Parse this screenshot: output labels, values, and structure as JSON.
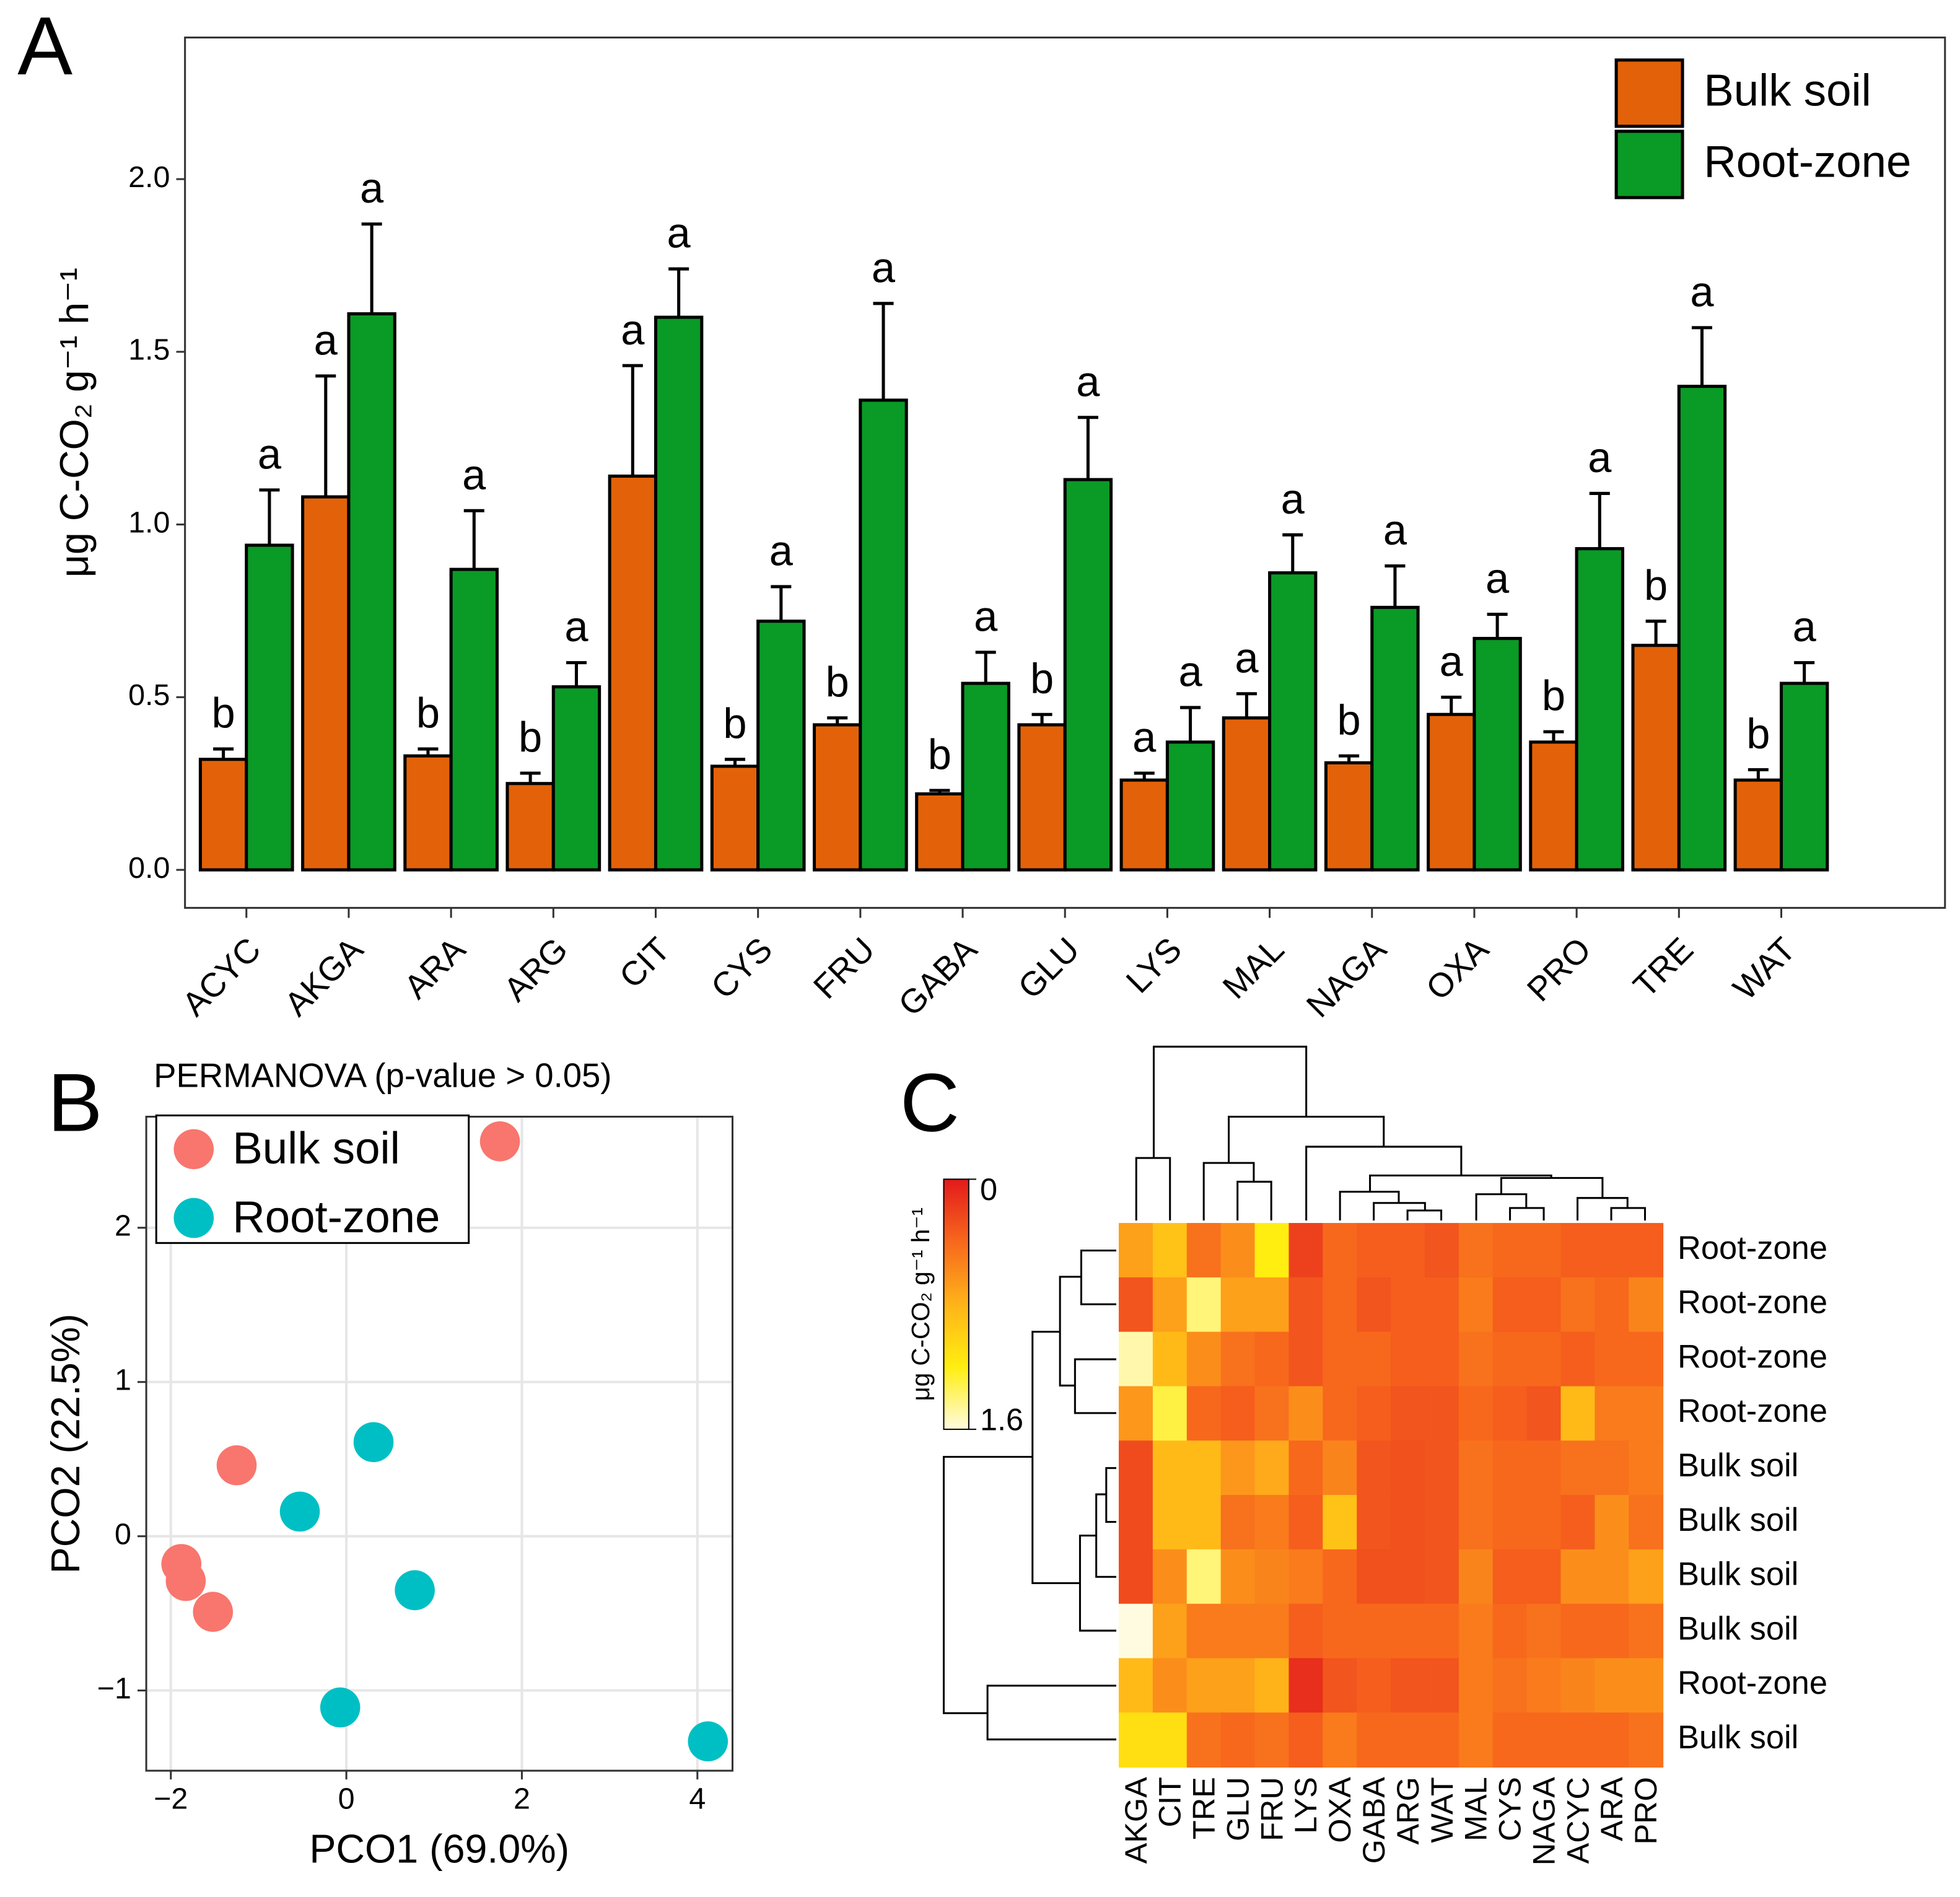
{
  "chart_data": [
    {
      "type": "bar",
      "panel_label": "A",
      "ylabel": "μg C-CO₂ g⁻¹ h⁻¹",
      "categories": [
        "ACYC",
        "AKGA",
        "ARA",
        "ARG",
        "CIT",
        "CYS",
        "FRU",
        "GABA",
        "GLU",
        "LYS",
        "MAL",
        "NAGA",
        "OXA",
        "PRO",
        "TRE",
        "WAT"
      ],
      "series": [
        {
          "name": "Bulk soil",
          "color": "#e36209",
          "values": [
            0.32,
            1.08,
            0.33,
            0.25,
            1.14,
            0.3,
            0.42,
            0.22,
            0.42,
            0.26,
            0.44,
            0.31,
            0.45,
            0.37,
            0.65,
            0.26
          ],
          "errors": [
            0.03,
            0.35,
            0.02,
            0.03,
            0.32,
            0.02,
            0.02,
            0.01,
            0.03,
            0.02,
            0.07,
            0.02,
            0.05,
            0.03,
            0.07,
            0.03
          ],
          "letters": [
            "b",
            "a",
            "b",
            "b",
            "a",
            "b",
            "b",
            "b",
            "b",
            "a",
            "a",
            "b",
            "a",
            "b",
            "b",
            "b"
          ]
        },
        {
          "name": "Root-zone",
          "color": "#0a9a26",
          "values": [
            0.94,
            1.61,
            0.87,
            0.53,
            1.6,
            0.72,
            1.36,
            0.54,
            1.13,
            0.37,
            0.86,
            0.76,
            0.67,
            0.93,
            1.4,
            0.54
          ],
          "errors": [
            0.16,
            0.26,
            0.17,
            0.07,
            0.14,
            0.1,
            0.28,
            0.09,
            0.18,
            0.1,
            0.11,
            0.12,
            0.07,
            0.16,
            0.17,
            0.06
          ],
          "letters": [
            "a",
            "a",
            "a",
            "a",
            "a",
            "a",
            "a",
            "a",
            "a",
            "a",
            "a",
            "a",
            "a",
            "a",
            "a",
            "a"
          ]
        }
      ],
      "ylim": [
        -0.11,
        2.41
      ],
      "yticks": [
        {
          "value": 0,
          "label": "0.0"
        },
        {
          "value": 0.5,
          "label": "0.5"
        },
        {
          "value": 1,
          "label": "1.0"
        },
        {
          "value": 1.5,
          "label": "1.5"
        },
        {
          "value": 2,
          "label": "2.0"
        }
      ],
      "legend": "top-right"
    },
    {
      "type": "scatter",
      "panel_label": "B",
      "subtitle": "PERMANOVA (p-value > 0.05)",
      "xlabel": "PCO1 (69.0%)",
      "ylabel": "PCO2 (22.5%)",
      "series": [
        {
          "name": "Bulk soil",
          "color": "#f8766d",
          "x": [
            1.75,
            -1.25,
            -1.88,
            -1.83,
            -1.52
          ],
          "y": [
            2.56,
            0.46,
            -0.18,
            -0.29,
            -0.49
          ]
        },
        {
          "name": "Root-zone",
          "color": "#00bfc4",
          "x": [
            0.31,
            -0.53,
            0.78,
            -0.07,
            4.12
          ],
          "y": [
            0.61,
            0.16,
            -0.35,
            -1.11,
            -1.33
          ]
        }
      ],
      "xlim": [
        -2.28,
        4.4
      ],
      "ylim": [
        -1.52,
        2.72
      ],
      "xticks": [
        {
          "value": -2,
          "label": "−2"
        },
        0,
        2,
        4
      ],
      "yticks": [
        {
          "value": -1,
          "label": "−1"
        },
        0,
        1,
        2
      ],
      "grid": true,
      "legend": "top-left"
    },
    {
      "type": "heatmap",
      "panel_label": "C",
      "colorbar_label": "μg C-CO₂ g⁻¹ h⁻¹",
      "x": [
        "AKGA",
        "CIT",
        "TRE",
        "GLU",
        "FRU",
        "LYS",
        "OXA",
        "GABA",
        "ARG",
        "WAT",
        "MAL",
        "CYS",
        "NAGA",
        "ACYC",
        "ARA",
        "PRO"
      ],
      "y": [
        "Root-zone",
        "Root-zone",
        "Root-zone",
        "Root-zone",
        "Bulk soil",
        "Bulk soil",
        "Bulk soil",
        "Bulk soil",
        "Root-zone",
        "Bulk soil"
      ],
      "values": [
        [
          0.7,
          0.9,
          0.45,
          0.6,
          1.2,
          0.2,
          0.4,
          0.35,
          0.35,
          0.3,
          0.45,
          0.4,
          0.4,
          0.35,
          0.35,
          0.35
        ],
        [
          0.3,
          0.7,
          1.4,
          0.7,
          0.7,
          0.3,
          0.4,
          0.3,
          0.35,
          0.35,
          0.5,
          0.35,
          0.35,
          0.45,
          0.4,
          0.55
        ],
        [
          1.5,
          0.85,
          0.6,
          0.45,
          0.4,
          0.3,
          0.4,
          0.4,
          0.35,
          0.35,
          0.45,
          0.4,
          0.4,
          0.35,
          0.4,
          0.4
        ],
        [
          0.65,
          1.3,
          0.4,
          0.35,
          0.45,
          0.6,
          0.4,
          0.35,
          0.3,
          0.3,
          0.4,
          0.35,
          0.3,
          0.85,
          0.5,
          0.5
        ],
        [
          0.25,
          0.85,
          0.85,
          0.65,
          0.75,
          0.4,
          0.55,
          0.3,
          0.28,
          0.3,
          0.45,
          0.4,
          0.4,
          0.45,
          0.45,
          0.5
        ],
        [
          0.25,
          0.85,
          0.85,
          0.45,
          0.5,
          0.35,
          0.9,
          0.3,
          0.28,
          0.3,
          0.45,
          0.4,
          0.4,
          0.35,
          0.6,
          0.45
        ],
        [
          0.25,
          0.6,
          1.4,
          0.6,
          0.55,
          0.5,
          0.4,
          0.28,
          0.28,
          0.3,
          0.55,
          0.35,
          0.35,
          0.6,
          0.6,
          0.7
        ],
        [
          1.6,
          0.7,
          0.5,
          0.5,
          0.5,
          0.35,
          0.4,
          0.4,
          0.4,
          0.4,
          0.5,
          0.4,
          0.45,
          0.4,
          0.4,
          0.45
        ],
        [
          0.85,
          0.6,
          0.7,
          0.7,
          0.8,
          0.1,
          0.3,
          0.35,
          0.3,
          0.3,
          0.5,
          0.45,
          0.5,
          0.55,
          0.6,
          0.6
        ],
        [
          1.1,
          1.1,
          0.45,
          0.4,
          0.45,
          0.35,
          0.5,
          0.4,
          0.4,
          0.4,
          0.5,
          0.4,
          0.4,
          0.4,
          0.4,
          0.45
        ]
      ],
      "clim": [
        0,
        1.6
      ],
      "colorbar_ticks": [
        0,
        1.6
      ],
      "colors": [
        "#e31a1c",
        "#f7681d",
        "#ffb319",
        "#ffee10",
        "#fffbe0"
      ]
    }
  ]
}
